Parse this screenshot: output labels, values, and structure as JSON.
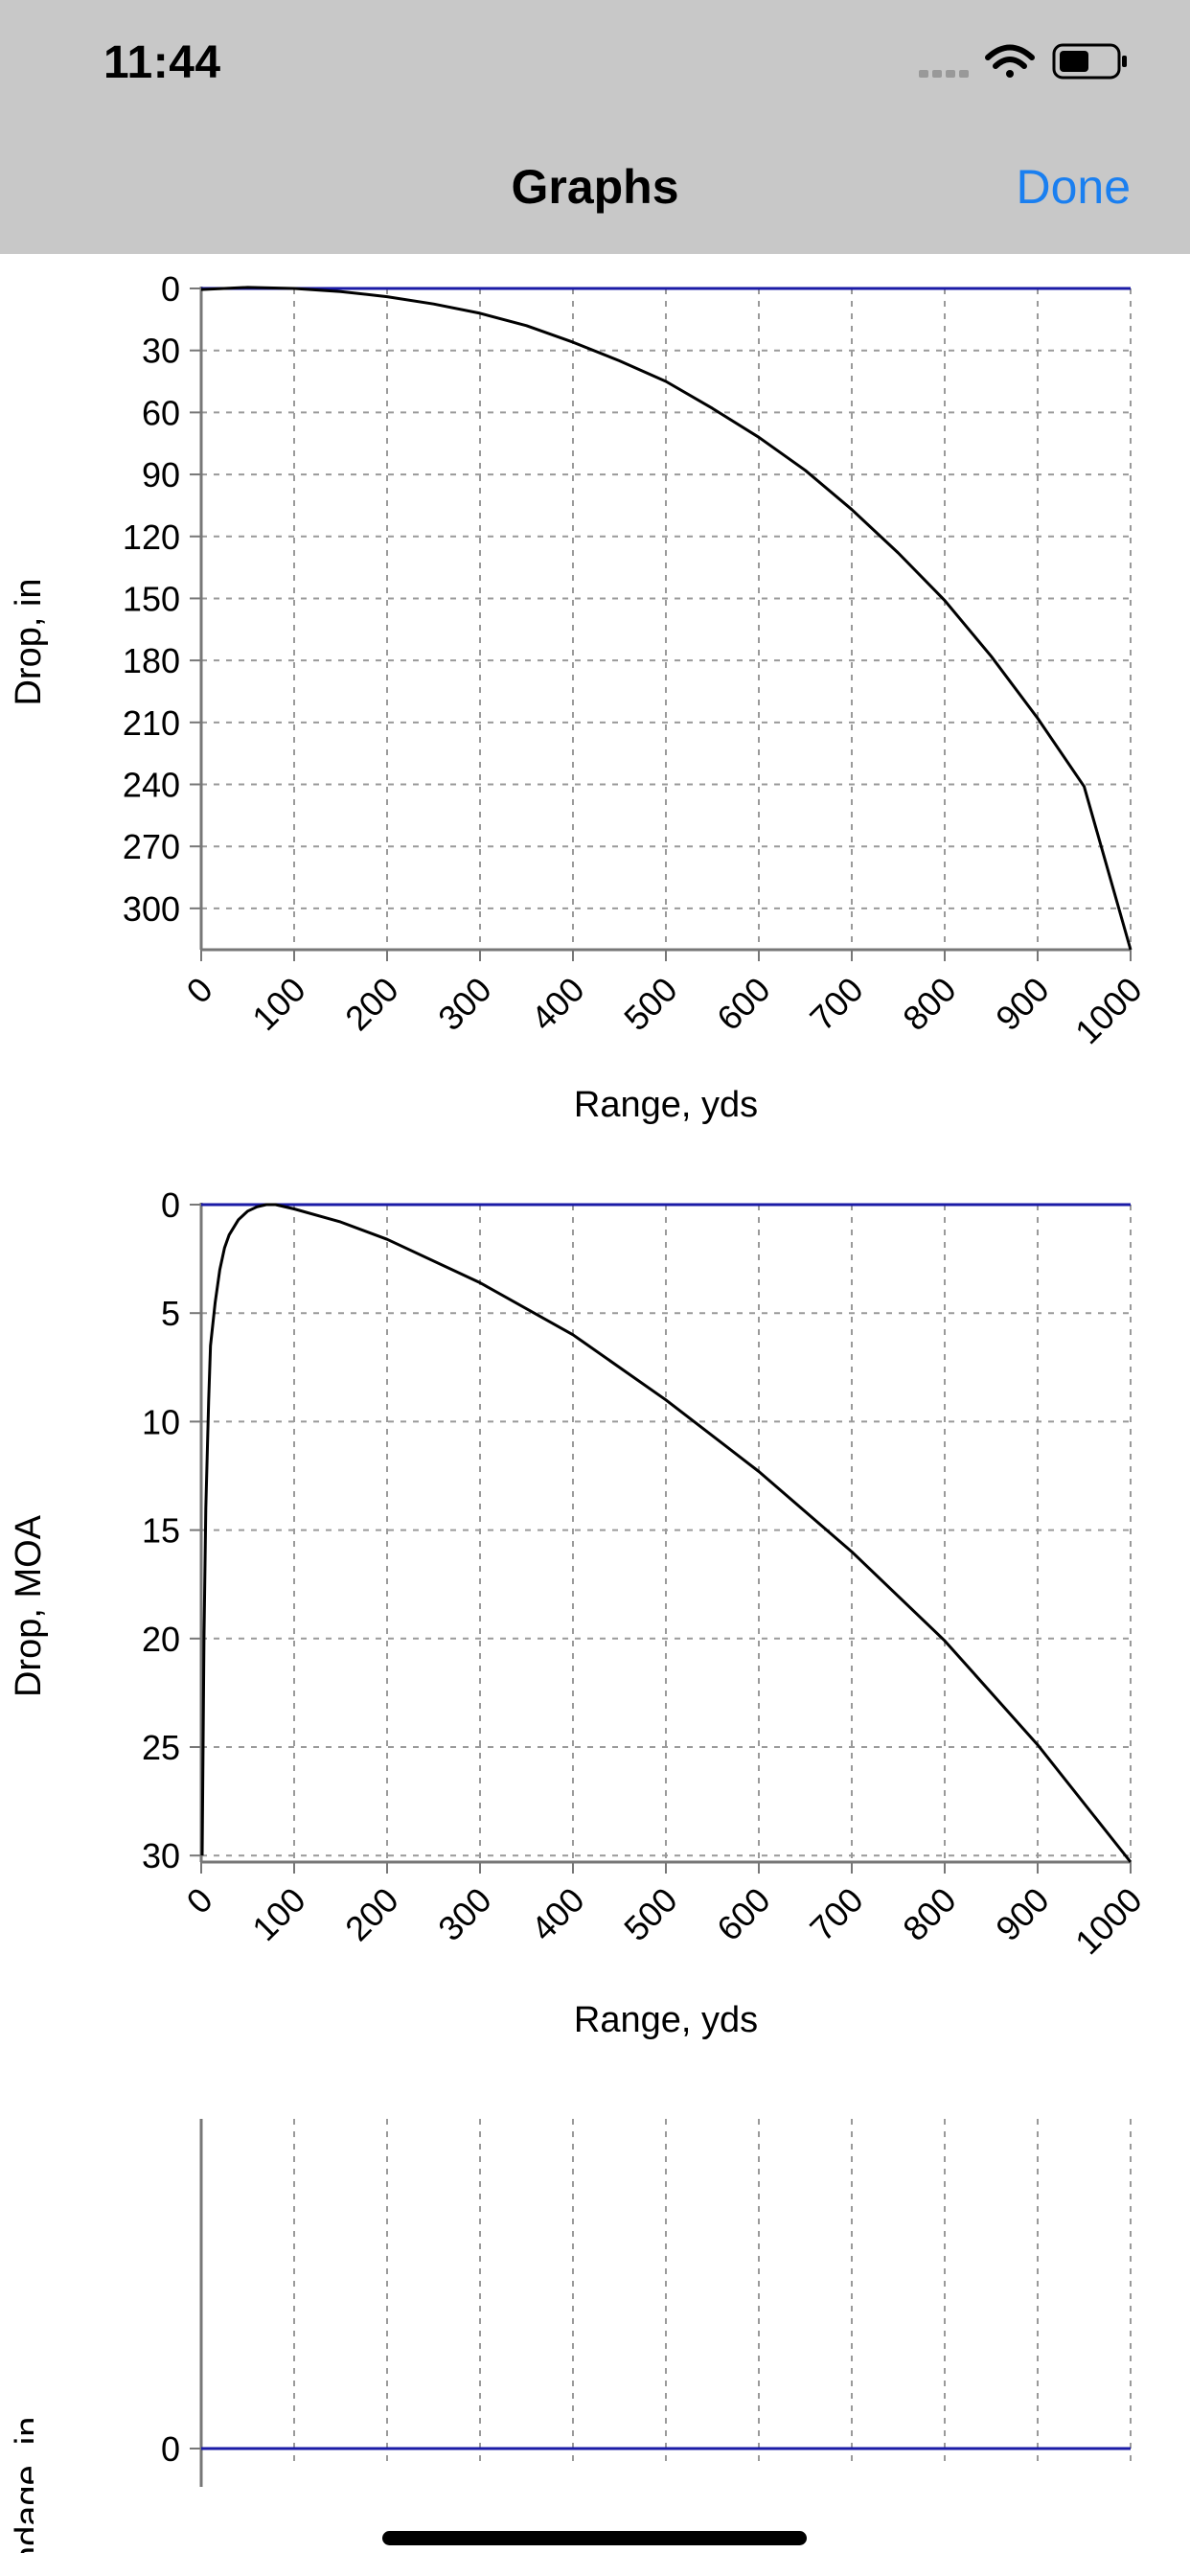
{
  "status_bar": {
    "time": "11:44",
    "icons": [
      "signal-dots-icon",
      "wifi-icon",
      "battery-icon"
    ]
  },
  "nav": {
    "title": "Graphs",
    "done_label": "Done",
    "done_color": "#1a7ff0"
  },
  "colors": {
    "curve": "#000000",
    "zero_line": "#1a1aa6",
    "grid": "#9a9a9a",
    "axis": "#777777"
  },
  "chart_data": [
    {
      "type": "line",
      "xlabel": "Range, yds",
      "ylabel": "Drop, in",
      "xlim": [
        0,
        1000
      ],
      "ylim": [
        0,
        320
      ],
      "y_inverted": true,
      "x_ticks": [
        "0",
        "100",
        "200",
        "300",
        "400",
        "500",
        "600",
        "700",
        "800",
        "900",
        "1000"
      ],
      "y_ticks": [
        "0",
        "30",
        "60",
        "90",
        "120",
        "150",
        "180",
        "210",
        "240",
        "270",
        "300"
      ],
      "grid": true,
      "series": [
        {
          "x": [
            0,
            50,
            100,
            150,
            200,
            250,
            300,
            350,
            400,
            450,
            500,
            550,
            600,
            650,
            700,
            750,
            800,
            850,
            900,
            950,
            1000
          ],
          "y": [
            0.5,
            -0.5,
            0,
            1.5,
            4,
            7.5,
            12,
            18,
            26,
            35,
            45,
            58,
            72,
            88,
            107,
            128,
            151,
            178,
            208,
            241,
            320
          ]
        }
      ]
    },
    {
      "type": "line",
      "xlabel": "Range, yds",
      "ylabel": "Drop, MOA",
      "xlim": [
        0,
        1000
      ],
      "ylim": [
        0,
        30.3
      ],
      "y_inverted": true,
      "x_ticks": [
        "0",
        "100",
        "200",
        "300",
        "400",
        "500",
        "600",
        "700",
        "800",
        "900",
        "1000"
      ],
      "y_ticks": [
        "0",
        "5",
        "10",
        "15",
        "20",
        "25",
        "30"
      ],
      "grid": true,
      "series": [
        {
          "x": [
            1,
            3,
            5,
            8,
            10,
            15,
            20,
            25,
            30,
            40,
            50,
            60,
            70,
            80,
            100,
            150,
            200,
            300,
            400,
            500,
            600,
            700,
            800,
            900,
            1000
          ],
          "y": [
            30,
            20,
            14,
            9,
            6.5,
            4.5,
            3,
            2,
            1.4,
            0.7,
            0.3,
            0.1,
            0,
            0,
            0.2,
            0.8,
            1.6,
            3.6,
            6,
            9,
            12.3,
            16,
            20.1,
            24.9,
            30.3
          ]
        }
      ]
    },
    {
      "type": "line",
      "xlabel": "",
      "ylabel": "Windage, in",
      "xlim": [
        0,
        1000
      ],
      "ylim": [
        -1,
        1
      ],
      "x_ticks": [],
      "y_ticks": [
        "0"
      ],
      "grid": true,
      "series": []
    }
  ]
}
